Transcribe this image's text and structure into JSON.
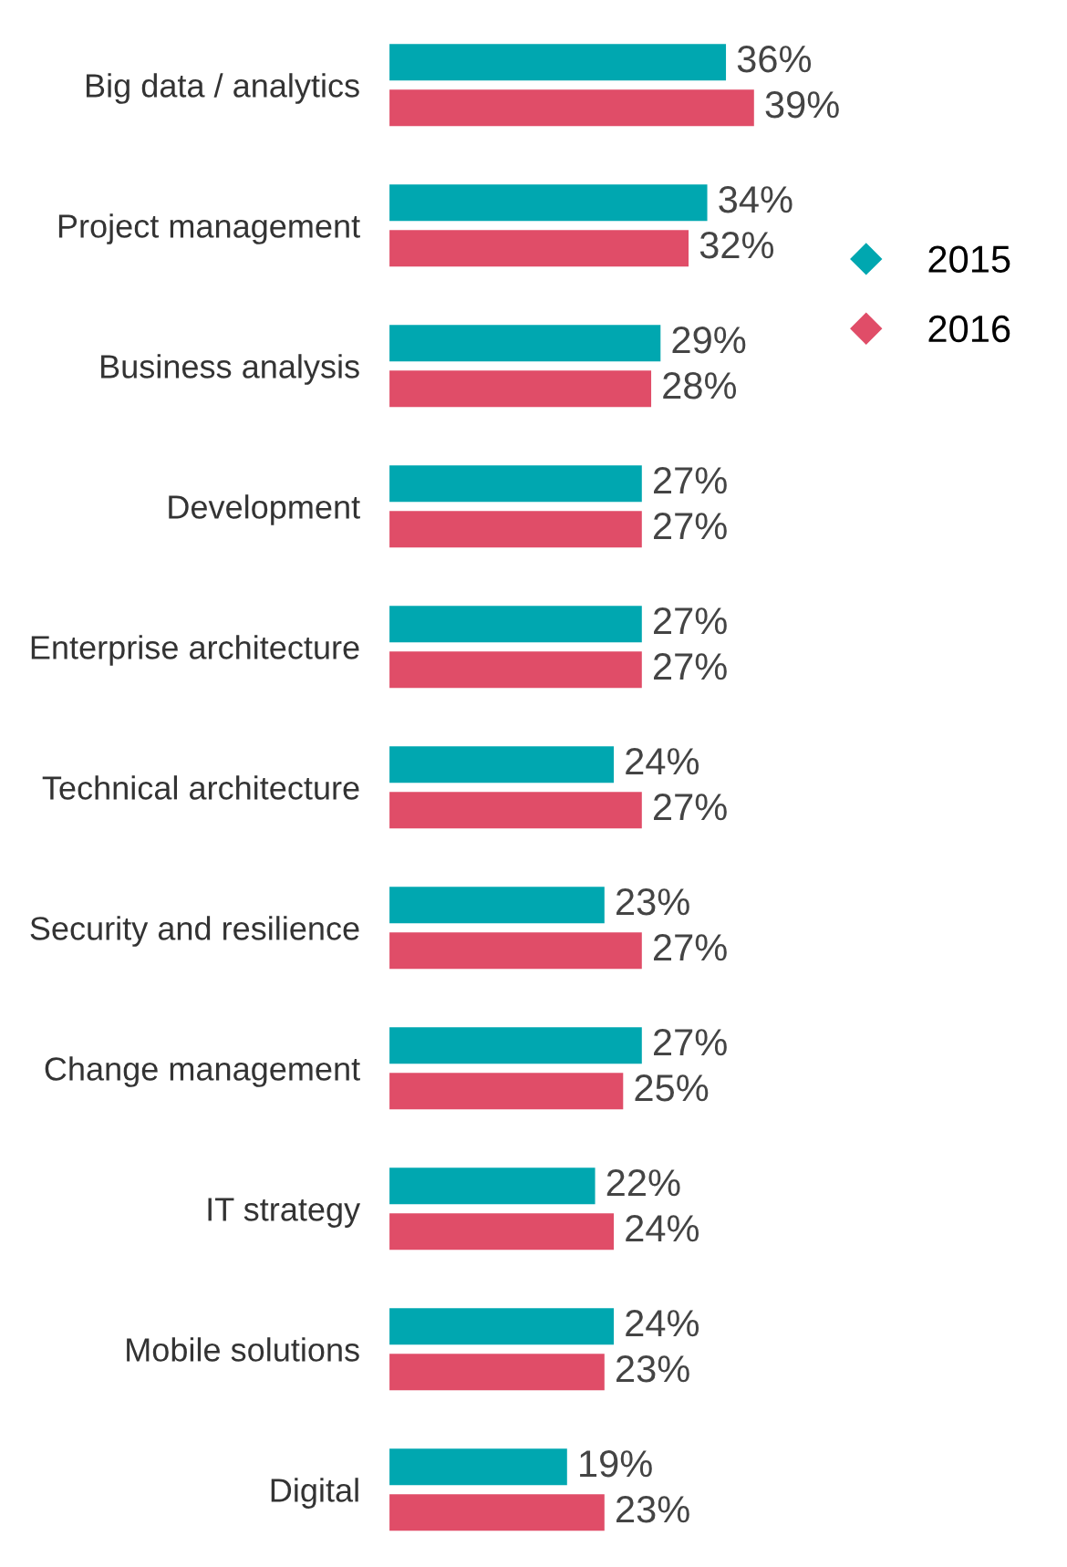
{
  "chart_data": {
    "type": "bar",
    "orientation": "horizontal",
    "categories": [
      "Big data / analytics",
      "Project management",
      "Business analysis",
      "Development",
      "Enterprise architecture",
      "Technical architecture",
      "Security and resilience",
      "Change management",
      "IT strategy",
      "Mobile solutions",
      "Digital"
    ],
    "series": [
      {
        "name": "2015",
        "color": "#00a7b0",
        "values": [
          36,
          34,
          29,
          27,
          27,
          24,
          23,
          27,
          22,
          24,
          19
        ],
        "value_labels": [
          "36%",
          "34%",
          "29%",
          "27%",
          "27%",
          "24%",
          "23%",
          "27%",
          "22%",
          "24%",
          "19%"
        ]
      },
      {
        "name": "2016",
        "color": "#e04d68",
        "values": [
          39,
          32,
          28,
          27,
          27,
          27,
          27,
          25,
          24,
          23,
          23
        ],
        "value_labels": [
          "39%",
          "32%",
          "28%",
          "27%",
          "27%",
          "27%",
          "27%",
          "25%",
          "24%",
          "23%",
          "23%"
        ]
      }
    ],
    "legend": "top right",
    "grid": false,
    "tick_labels": "y",
    "marker": "diamond"
  }
}
